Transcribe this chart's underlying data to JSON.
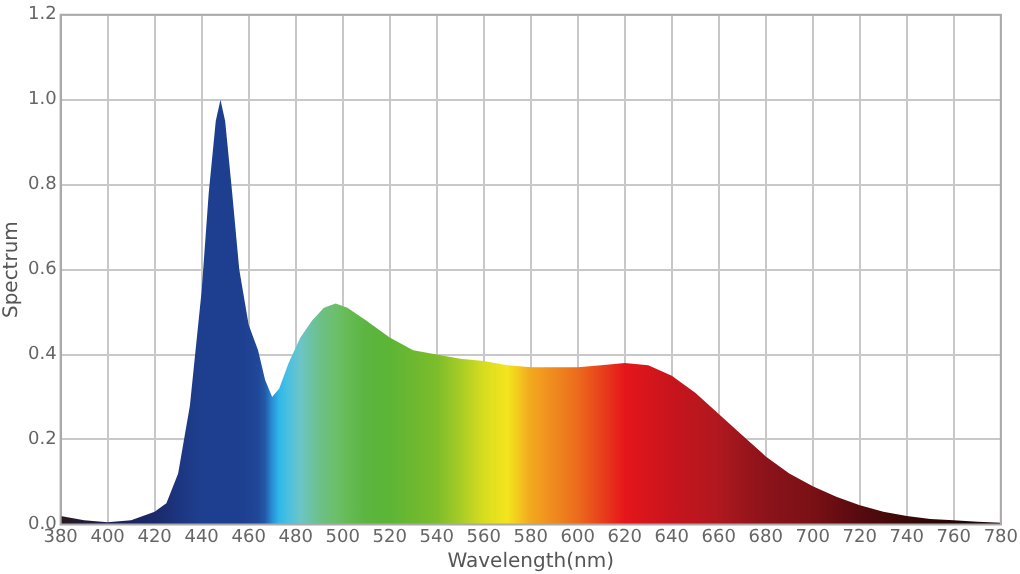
{
  "chart_data": {
    "type": "area",
    "xlabel": "Wavelength(nm)",
    "ylabel": "Spectrum",
    "xlim": [
      380,
      780
    ],
    "xticks": [
      380,
      400,
      420,
      440,
      460,
      480,
      500,
      520,
      540,
      560,
      580,
      600,
      620,
      640,
      660,
      680,
      700,
      720,
      740,
      760,
      780
    ],
    "ylim": [
      0,
      1.2
    ],
    "yticks": [
      {
        "value": 0,
        "label": "0.0"
      },
      {
        "value": 0.2,
        "label": "0.2"
      },
      {
        "value": 0.4,
        "label": "0.4"
      },
      {
        "value": 0.6,
        "label": "0.6"
      },
      {
        "value": 0.8,
        "label": "0.8"
      },
      {
        "value": 1,
        "label": "1.0"
      },
      {
        "value": 1.2,
        "label": "1.2"
      }
    ],
    "grid": true,
    "legend": false,
    "marker": "none",
    "x": [
      380,
      390,
      400,
      410,
      420,
      425,
      430,
      435,
      440,
      443,
      446,
      448,
      450,
      453,
      456,
      460,
      464,
      467,
      470,
      473,
      477,
      482,
      487,
      492,
      497,
      502,
      510,
      520,
      530,
      540,
      550,
      560,
      570,
      580,
      590,
      600,
      610,
      620,
      630,
      640,
      650,
      660,
      670,
      680,
      690,
      700,
      710,
      720,
      730,
      740,
      750,
      760,
      770,
      780
    ],
    "series": [
      {
        "values": [
          0.02,
          0.01,
          0.005,
          0.01,
          0.03,
          0.05,
          0.12,
          0.28,
          0.55,
          0.78,
          0.95,
          1.0,
          0.95,
          0.78,
          0.6,
          0.47,
          0.41,
          0.34,
          0.3,
          0.32,
          0.38,
          0.44,
          0.48,
          0.51,
          0.52,
          0.51,
          0.48,
          0.44,
          0.41,
          0.4,
          0.39,
          0.385,
          0.375,
          0.37,
          0.37,
          0.37,
          0.375,
          0.38,
          0.375,
          0.35,
          0.31,
          0.26,
          0.21,
          0.16,
          0.12,
          0.09,
          0.065,
          0.045,
          0.03,
          0.02,
          0.013,
          0.01,
          0.006,
          0.004
        ],
        "colors": [
          "#2a1a1a",
          "#1f1c3a",
          "#1a1f4a",
          "#1a2460",
          "#1a2a6a",
          "#1c2f74",
          "#1d3580",
          "#1e3a88",
          "#1e3f8f",
          "#1e3f8f",
          "#1e3f8f",
          "#1e3f8f",
          "#1e3f8f",
          "#1e3f8f",
          "#1e3f8f",
          "#1f4292",
          "#20489a",
          "#225aa8",
          "#2a8ed6",
          "#2fb8e8",
          "#4cc0e0",
          "#6cc5c8",
          "#6cc2a0",
          "#6cc07e",
          "#6cbf6a",
          "#66bb55",
          "#5bb540",
          "#5cb535",
          "#6db830",
          "#7cbd2a",
          "#a6cc26",
          "#d8dd20",
          "#f4e51e",
          "#f2a81e",
          "#ef8a1e",
          "#ec6b1d",
          "#e8401c",
          "#e5161b",
          "#d6151c",
          "#c8141d",
          "#bc161e",
          "#b0181f",
          "#9c151c",
          "#8c131a",
          "#821218",
          "#7a1015",
          "#680d12",
          "#560b0f",
          "#480a0b",
          "#3a0808",
          "#2e0707",
          "#240606",
          "#1e0505",
          "#1a0505"
        ]
      }
    ]
  }
}
